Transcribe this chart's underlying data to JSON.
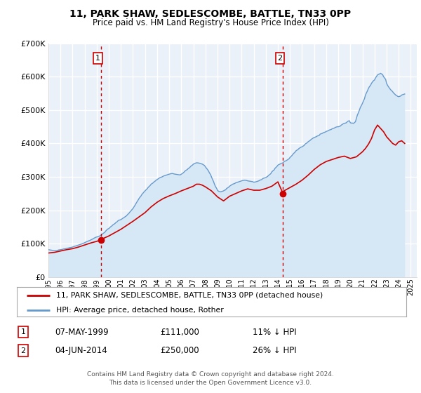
{
  "title": "11, PARK SHAW, SEDLESCOMBE, BATTLE, TN33 0PP",
  "subtitle": "Price paid vs. HM Land Registry's House Price Index (HPI)",
  "legend_line1": "11, PARK SHAW, SEDLESCOMBE, BATTLE, TN33 0PP (detached house)",
  "legend_line2": "HPI: Average price, detached house, Rother",
  "footer1": "Contains HM Land Registry data © Crown copyright and database right 2024.",
  "footer2": "This data is licensed under the Open Government Licence v3.0.",
  "sale1_date": "07-MAY-1999",
  "sale1_price": 111000,
  "sale1_label": "11% ↓ HPI",
  "sale1_year": 1999.35,
  "sale2_date": "04-JUN-2014",
  "sale2_price": 250000,
  "sale2_label": "26% ↓ HPI",
  "sale2_year": 2014.42,
  "price_color": "#cc0000",
  "hpi_color": "#6699cc",
  "hpi_fill_color": "#d6e8f5",
  "vline_color": "#cc0000",
  "dot_color": "#cc0000",
  "ylim_max": 700000,
  "xlim_min": 1995.0,
  "xlim_max": 2025.5,
  "plot_bg_color": "#eaf1f8",
  "grid_color": "#ffffff",
  "hpi_data_years": [
    1995.0,
    1995.08,
    1995.17,
    1995.25,
    1995.33,
    1995.42,
    1995.5,
    1995.58,
    1995.67,
    1995.75,
    1995.83,
    1995.92,
    1996.0,
    1996.08,
    1996.17,
    1996.25,
    1996.33,
    1996.42,
    1996.5,
    1996.58,
    1996.67,
    1996.75,
    1996.83,
    1996.92,
    1997.0,
    1997.08,
    1997.17,
    1997.25,
    1997.33,
    1997.42,
    1997.5,
    1997.58,
    1997.67,
    1997.75,
    1997.83,
    1997.92,
    1998.0,
    1998.08,
    1998.17,
    1998.25,
    1998.33,
    1998.42,
    1998.5,
    1998.58,
    1998.67,
    1998.75,
    1998.83,
    1998.92,
    1999.0,
    1999.08,
    1999.17,
    1999.25,
    1999.33,
    1999.42,
    1999.5,
    1999.58,
    1999.67,
    1999.75,
    1999.83,
    1999.92,
    2000.0,
    2000.08,
    2000.17,
    2000.25,
    2000.33,
    2000.42,
    2000.5,
    2000.58,
    2000.67,
    2000.75,
    2000.83,
    2000.92,
    2001.0,
    2001.08,
    2001.17,
    2001.25,
    2001.33,
    2001.42,
    2001.5,
    2001.58,
    2001.67,
    2001.75,
    2001.83,
    2001.92,
    2002.0,
    2002.08,
    2002.17,
    2002.25,
    2002.33,
    2002.42,
    2002.5,
    2002.58,
    2002.67,
    2002.75,
    2002.83,
    2002.92,
    2003.0,
    2003.08,
    2003.17,
    2003.25,
    2003.33,
    2003.42,
    2003.5,
    2003.58,
    2003.67,
    2003.75,
    2003.83,
    2003.92,
    2004.0,
    2004.08,
    2004.17,
    2004.25,
    2004.33,
    2004.42,
    2004.5,
    2004.58,
    2004.67,
    2004.75,
    2004.83,
    2004.92,
    2005.0,
    2005.08,
    2005.17,
    2005.25,
    2005.33,
    2005.42,
    2005.5,
    2005.58,
    2005.67,
    2005.75,
    2005.83,
    2005.92,
    2006.0,
    2006.08,
    2006.17,
    2006.25,
    2006.33,
    2006.42,
    2006.5,
    2006.58,
    2006.67,
    2006.75,
    2006.83,
    2006.92,
    2007.0,
    2007.08,
    2007.17,
    2007.25,
    2007.33,
    2007.42,
    2007.5,
    2007.58,
    2007.67,
    2007.75,
    2007.83,
    2007.92,
    2008.0,
    2008.08,
    2008.17,
    2008.25,
    2008.33,
    2008.42,
    2008.5,
    2008.58,
    2008.67,
    2008.75,
    2008.83,
    2008.92,
    2009.0,
    2009.08,
    2009.17,
    2009.25,
    2009.33,
    2009.42,
    2009.5,
    2009.58,
    2009.67,
    2009.75,
    2009.83,
    2009.92,
    2010.0,
    2010.08,
    2010.17,
    2010.25,
    2010.33,
    2010.42,
    2010.5,
    2010.58,
    2010.67,
    2010.75,
    2010.83,
    2010.92,
    2011.0,
    2011.08,
    2011.17,
    2011.25,
    2011.33,
    2011.42,
    2011.5,
    2011.58,
    2011.67,
    2011.75,
    2011.83,
    2011.92,
    2012.0,
    2012.08,
    2012.17,
    2012.25,
    2012.33,
    2012.42,
    2012.5,
    2012.58,
    2012.67,
    2012.75,
    2012.83,
    2012.92,
    2013.0,
    2013.08,
    2013.17,
    2013.25,
    2013.33,
    2013.42,
    2013.5,
    2013.58,
    2013.67,
    2013.75,
    2013.83,
    2013.92,
    2014.0,
    2014.08,
    2014.17,
    2014.25,
    2014.33,
    2014.42,
    2014.5,
    2014.58,
    2014.67,
    2014.75,
    2014.83,
    2014.92,
    2015.0,
    2015.08,
    2015.17,
    2015.25,
    2015.33,
    2015.42,
    2015.5,
    2015.58,
    2015.67,
    2015.75,
    2015.83,
    2015.92,
    2016.0,
    2016.08,
    2016.17,
    2016.25,
    2016.33,
    2016.42,
    2016.5,
    2016.58,
    2016.67,
    2016.75,
    2016.83,
    2016.92,
    2017.0,
    2017.08,
    2017.17,
    2017.25,
    2017.33,
    2017.42,
    2017.5,
    2017.58,
    2017.67,
    2017.75,
    2017.83,
    2017.92,
    2018.0,
    2018.08,
    2018.17,
    2018.25,
    2018.33,
    2018.42,
    2018.5,
    2018.58,
    2018.67,
    2018.75,
    2018.83,
    2018.92,
    2019.0,
    2019.08,
    2019.17,
    2019.25,
    2019.33,
    2019.42,
    2019.5,
    2019.58,
    2019.67,
    2019.75,
    2019.83,
    2019.92,
    2020.0,
    2020.08,
    2020.17,
    2020.25,
    2020.33,
    2020.42,
    2020.5,
    2020.58,
    2020.67,
    2020.75,
    2020.83,
    2020.92,
    2021.0,
    2021.08,
    2021.17,
    2021.25,
    2021.33,
    2021.42,
    2021.5,
    2021.58,
    2021.67,
    2021.75,
    2021.83,
    2021.92,
    2022.0,
    2022.08,
    2022.17,
    2022.25,
    2022.33,
    2022.42,
    2022.5,
    2022.58,
    2022.67,
    2022.75,
    2022.83,
    2022.92,
    2023.0,
    2023.08,
    2023.17,
    2023.25,
    2023.33,
    2023.42,
    2023.5,
    2023.58,
    2023.67,
    2023.75,
    2023.83,
    2023.92,
    2024.0,
    2024.08,
    2024.17,
    2024.25,
    2024.33,
    2024.42,
    2024.5
  ],
  "hpi_data_values": [
    82000,
    81500,
    81000,
    80500,
    80000,
    79500,
    79000,
    79200,
    79500,
    80000,
    81000,
    81500,
    82000,
    82500,
    83000,
    84000,
    84500,
    85000,
    86000,
    86500,
    87000,
    88000,
    88500,
    89000,
    90000,
    91000,
    92000,
    93000,
    94000,
    95000,
    96000,
    97000,
    98000,
    99000,
    100500,
    101500,
    103000,
    104500,
    106000,
    107000,
    108500,
    109500,
    111000,
    112500,
    114000,
    116000,
    117500,
    119000,
    120000,
    121000,
    122000,
    123000,
    125000,
    127000,
    130000,
    132000,
    134000,
    138000,
    141000,
    144000,
    145000,
    148000,
    151000,
    153000,
    156000,
    158000,
    160000,
    163000,
    165000,
    168000,
    170000,
    171000,
    172000,
    174000,
    176000,
    178000,
    180000,
    182000,
    185000,
    188000,
    191000,
    195000,
    198000,
    202000,
    205000,
    210000,
    215000,
    220000,
    225000,
    230000,
    235000,
    239000,
    243000,
    248000,
    251000,
    255000,
    258000,
    261000,
    264000,
    268000,
    271000,
    274000,
    278000,
    280000,
    282000,
    285000,
    287000,
    290000,
    292000,
    294000,
    296000,
    298000,
    299000,
    300000,
    302000,
    303000,
    304000,
    305000,
    306000,
    307000,
    308000,
    309000,
    309500,
    310000,
    309500,
    308500,
    308000,
    307500,
    307000,
    306500,
    306000,
    306000,
    308000,
    310000,
    312000,
    315000,
    318000,
    320000,
    322000,
    325000,
    327000,
    330000,
    333000,
    335000,
    338000,
    339500,
    341000,
    342000,
    342000,
    341500,
    341000,
    340000,
    339000,
    338000,
    336000,
    334000,
    330000,
    326000,
    322000,
    318000,
    312000,
    307000,
    300000,
    293000,
    286000,
    278000,
    271000,
    266000,
    260000,
    257000,
    256000,
    255000,
    256000,
    257000,
    258000,
    260000,
    261000,
    265000,
    267000,
    269000,
    272000,
    274000,
    276000,
    278000,
    279000,
    280000,
    282000,
    283000,
    284000,
    285000,
    286000,
    287000,
    288000,
    289000,
    289500,
    290000,
    289500,
    289000,
    288000,
    287500,
    287000,
    286500,
    286000,
    285500,
    284000,
    284500,
    285000,
    286000,
    287000,
    288000,
    290000,
    291000,
    292000,
    295000,
    296000,
    297000,
    298000,
    300000,
    302000,
    305000,
    307000,
    310000,
    315000,
    318000,
    320000,
    325000,
    328000,
    331000,
    335000,
    337000,
    338000,
    340000,
    341000,
    342000,
    345000,
    347000,
    348000,
    350000,
    352000,
    354000,
    358000,
    361000,
    364000,
    368000,
    371000,
    374000,
    378000,
    380000,
    382000,
    385000,
    387000,
    389000,
    390000,
    392000,
    394000,
    398000,
    400000,
    402000,
    405000,
    407000,
    409000,
    412000,
    414000,
    416000,
    418000,
    419000,
    420000,
    422000,
    423000,
    424000,
    428000,
    429000,
    430000,
    432000,
    433000,
    434000,
    436000,
    437000,
    438000,
    440000,
    441000,
    442000,
    444000,
    445000,
    446000,
    448000,
    449000,
    450000,
    450000,
    451000,
    452000,
    455000,
    457000,
    459000,
    460000,
    461000,
    462000,
    465000,
    467000,
    468000,
    462000,
    461000,
    461000,
    460000,
    462000,
    465000,
    475000,
    485000,
    492000,
    500000,
    508000,
    514000,
    520000,
    527000,
    534000,
    545000,
    551000,
    558000,
    565000,
    570000,
    574000,
    580000,
    584000,
    588000,
    590000,
    596000,
    601000,
    605000,
    607000,
    608000,
    610000,
    608000,
    606000,
    600000,
    596000,
    592000,
    580000,
    574000,
    569000,
    565000,
    561000,
    558000,
    555000,
    551000,
    548000,
    545000,
    543000,
    541000,
    540000,
    541000,
    542000,
    545000,
    546000,
    547000,
    548000
  ],
  "price_line_years": [
    1995.0,
    1995.5,
    1996.0,
    1996.5,
    1997.0,
    1997.5,
    1998.0,
    1998.5,
    1999.0,
    1999.35,
    1999.35,
    1999.5,
    2000.0,
    2000.5,
    2001.0,
    2001.5,
    2002.0,
    2002.5,
    2003.0,
    2003.5,
    2004.0,
    2004.5,
    2005.0,
    2005.5,
    2006.0,
    2006.5,
    2007.0,
    2007.25,
    2007.5,
    2007.75,
    2008.0,
    2008.5,
    2009.0,
    2009.5,
    2010.0,
    2010.5,
    2011.0,
    2011.5,
    2012.0,
    2012.5,
    2013.0,
    2013.5,
    2014.0,
    2014.42,
    2014.42,
    2014.5,
    2015.0,
    2015.5,
    2016.0,
    2016.5,
    2017.0,
    2017.5,
    2018.0,
    2018.5,
    2019.0,
    2019.5,
    2020.0,
    2020.5,
    2021.0,
    2021.25,
    2021.5,
    2021.75,
    2022.0,
    2022.25,
    2022.5,
    2022.75,
    2023.0,
    2023.25,
    2023.5,
    2023.75,
    2024.0,
    2024.25,
    2024.5
  ],
  "price_line_values": [
    72000,
    74000,
    78000,
    82000,
    85000,
    90000,
    96000,
    102000,
    107000,
    111000,
    111000,
    115000,
    123000,
    133000,
    143000,
    155000,
    167000,
    180000,
    193000,
    210000,
    224000,
    235000,
    243000,
    250000,
    258000,
    265000,
    272000,
    278000,
    278000,
    275000,
    270000,
    258000,
    240000,
    228000,
    242000,
    250000,
    258000,
    264000,
    260000,
    260000,
    265000,
    272000,
    285000,
    250000,
    250000,
    258000,
    268000,
    278000,
    290000,
    305000,
    322000,
    336000,
    346000,
    352000,
    358000,
    362000,
    355000,
    360000,
    375000,
    385000,
    398000,
    415000,
    440000,
    455000,
    445000,
    435000,
    420000,
    410000,
    400000,
    395000,
    405000,
    408000,
    400000
  ]
}
